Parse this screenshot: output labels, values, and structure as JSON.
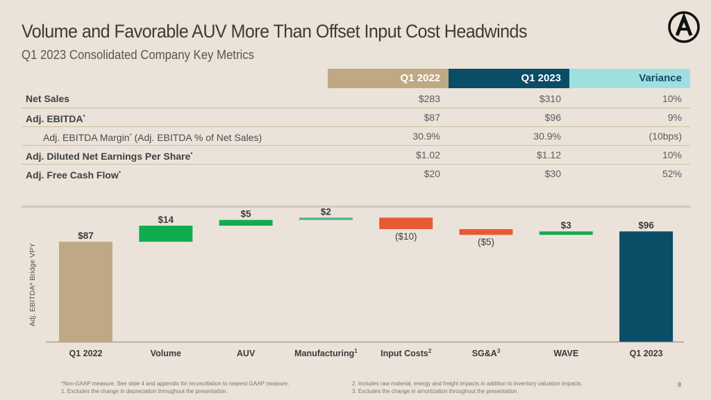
{
  "header": {
    "title": "Volume and Favorable AUV More Than Offset Input Cost Headwinds",
    "subtitle": "Q1 2023 Consolidated Company Key Metrics",
    "logo_icon": "circle-a-logo"
  },
  "table": {
    "columns": [
      "Q1 2022",
      "Q1 2023",
      "Variance"
    ],
    "column_colors": [
      "#bfa985",
      "#0a4d67",
      "#a0dfe0"
    ],
    "rows": [
      {
        "label": "Net Sales",
        "sup": "",
        "sub": false,
        "values": [
          "$283",
          "$310",
          "10%"
        ]
      },
      {
        "label": "Adj. EBITDA",
        "sup": "*",
        "sub": false,
        "values": [
          "$87",
          "$96",
          "9%"
        ]
      },
      {
        "label": "Adj. EBITDA Margin",
        "sup": "*",
        "suffix": " (Adj. EBITDA % of Net Sales)",
        "sub": true,
        "values": [
          "30.9%",
          "30.9%",
          "(10bps)"
        ]
      },
      {
        "label": "Adj. Diluted Net Earnings Per Share",
        "sup": "*",
        "sub": false,
        "values": [
          "$1.02",
          "$1.12",
          "10%"
        ]
      },
      {
        "label": "Adj. Free Cash Flow",
        "sup": "*",
        "sub": false,
        "values": [
          "$20",
          "$30",
          "52%"
        ]
      }
    ]
  },
  "chart_data": {
    "type": "bar",
    "subtype": "waterfall",
    "title": "",
    "ylabel": "Adj. EBITDA* Bridge VPY",
    "xlabel": "",
    "categories": [
      "Q1 2022",
      "Volume",
      "AUV",
      "Manufacturing",
      "Input Costs",
      "SG&A",
      "WAVE",
      "Q1 2023"
    ],
    "category_superscripts": [
      "",
      "",
      "",
      "1",
      "2",
      "3",
      "",
      ""
    ],
    "values": [
      87,
      14,
      5,
      2,
      -10,
      -5,
      3,
      96
    ],
    "kinds": [
      "total",
      "delta",
      "delta",
      "delta",
      "delta",
      "delta",
      "delta",
      "total"
    ],
    "data_labels": [
      "$87",
      "$14",
      "$5",
      "$2",
      "($10)",
      "($5)",
      "$3",
      "$96"
    ],
    "colors": {
      "start_total": "#bfa985",
      "end_total": "#0a4d67",
      "increase": "#12ac50",
      "increase_small": "#4fb38a",
      "decrease": "#e85a35"
    },
    "ylim": [
      0,
      104
    ],
    "grid": false,
    "legend": "none"
  },
  "footnotes": {
    "left": [
      "*Non-GAAP measure. See slide 4 and appendix for reconciliation to nearest GAAP measure.",
      "1. Excludes the change in depreciation throughout the presentation."
    ],
    "right": [
      "2. Includes raw material, energy and freight impacts in addition to inventory valuation impacts.",
      "3. Excludes the change in amortization throughout the presentation."
    ]
  },
  "page_number": "8"
}
